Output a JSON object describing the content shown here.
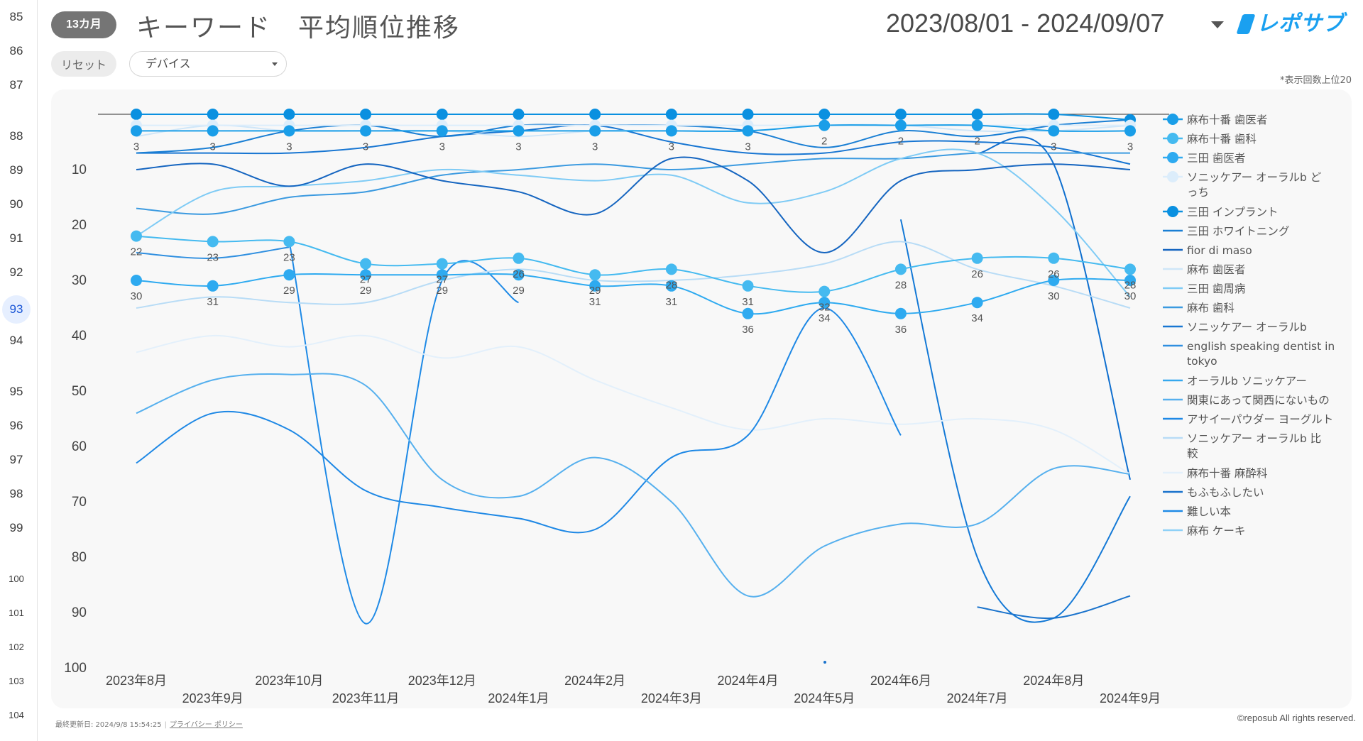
{
  "gutter": {
    "lines": [
      "85",
      "86",
      "87",
      "88",
      "89",
      "90",
      "91",
      "92",
      "93",
      "94",
      "95",
      "96",
      "97",
      "98",
      "99",
      "100",
      "101",
      "102",
      "103",
      "104"
    ],
    "active": "93"
  },
  "header": {
    "period_badge": "13カ月",
    "title": "キーワード　平均順位推移",
    "date_range": "2023/08/01 - 2024/09/07",
    "logo_text": "レポサブ"
  },
  "controls": {
    "reset_label": "リセット",
    "device_label": "デバイス"
  },
  "chart_note": "*表示回数上位20",
  "footer": {
    "updated": "最終更新日: 2024/9/8 15:54:25",
    "privacy": "プライバシー ポリシー",
    "copyright": "©reposub All rights reserved."
  },
  "chart_data": {
    "type": "line",
    "y_reversed": true,
    "ylim": [
      0,
      100
    ],
    "yticks": [
      10,
      20,
      30,
      40,
      50,
      60,
      70,
      80,
      90,
      100
    ],
    "grid": false,
    "legend_position": "right",
    "x": [
      "2023年8月",
      "2023年9月",
      "2023年10月",
      "2023年11月",
      "2023年12月",
      "2024年1月",
      "2024年2月",
      "2024年3月",
      "2024年4月",
      "2024年5月",
      "2024年6月",
      "2024年7月",
      "2024年8月",
      "2024年9月"
    ],
    "series": [
      {
        "name": "麻布十番 歯医者",
        "color": "#1a9ee8",
        "marker": true,
        "labels": true,
        "values": [
          3,
          3,
          3,
          3,
          3,
          3,
          3,
          3,
          3,
          2,
          2,
          2,
          3,
          3
        ]
      },
      {
        "name": "麻布十番 歯科",
        "color": "#45baf0",
        "marker": true,
        "labels": true,
        "values": [
          22,
          23,
          23,
          27,
          27,
          26,
          29,
          28,
          31,
          32,
          28,
          26,
          26,
          28
        ]
      },
      {
        "name": "三田 歯医者",
        "color": "#2eaaf0",
        "marker": true,
        "labels": true,
        "values": [
          30,
          31,
          29,
          29,
          29,
          29,
          31,
          31,
          36,
          34,
          36,
          34,
          30,
          30
        ]
      },
      {
        "name": "ソニッケアー オーラルb どっち",
        "color": "#dcedfb",
        "marker": true,
        "labels": false,
        "values": [
          2,
          2,
          2,
          2,
          2,
          2,
          2,
          2,
          2,
          2,
          2,
          2,
          2,
          2
        ]
      },
      {
        "name": "三田 インプラント",
        "color": "#0a90e0",
        "marker": true,
        "labels": false,
        "values": [
          0,
          0,
          0,
          0,
          0,
          0,
          0,
          0,
          0,
          0,
          0,
          0,
          0,
          1
        ]
      },
      {
        "name": "三田 ホワイトニング",
        "color": "#1a7fd4",
        "marker": false,
        "labels": false,
        "values": [
          7,
          6,
          3,
          2,
          4,
          2,
          2,
          2,
          3,
          6,
          3,
          4,
          2,
          1
        ]
      },
      {
        "name": "fior di maso",
        "color": "#1565c0",
        "marker": false,
        "labels": false,
        "values": [
          10,
          9,
          13,
          9,
          12,
          14,
          18,
          8,
          12,
          25,
          12,
          10,
          9,
          10
        ]
      },
      {
        "name": "麻布 歯医者",
        "color": "#cfe6f8",
        "marker": false,
        "labels": false,
        "values": [
          4,
          2,
          3,
          3,
          3,
          4,
          3,
          3,
          3,
          2,
          2,
          3,
          3,
          2
        ]
      },
      {
        "name": "三田 歯周病",
        "color": "#7fcbf5",
        "marker": false,
        "labels": false,
        "values": [
          22,
          14,
          13,
          12,
          10,
          11,
          12,
          11,
          16,
          14,
          8,
          7,
          17,
          33
        ]
      },
      {
        "name": "麻布 歯科",
        "color": "#3b9ae0",
        "marker": false,
        "labels": false,
        "values": [
          17,
          18,
          15,
          14,
          11,
          10,
          9,
          10,
          9,
          8,
          8,
          7,
          7,
          7
        ]
      },
      {
        "name": "ソニッケアー オーラルb",
        "color": "#1876d2",
        "marker": false,
        "labels": false,
        "values": [
          7,
          7,
          7,
          6,
          4,
          3,
          2,
          5,
          7,
          7,
          5,
          5,
          6,
          9
        ]
      },
      {
        "name": "english speaking dentist in tokyo",
        "color": "#2f8fe0",
        "marker": false,
        "labels": false,
        "values": [
          25,
          26,
          24,
          null,
          null,
          null,
          null,
          null,
          null,
          null,
          null,
          null,
          null,
          null
        ]
      },
      {
        "name": "オーラルb ソニッケアー",
        "color": "#35a8ee",
        "marker": false,
        "labels": false,
        "values": [
          null,
          null,
          null,
          null,
          null,
          null,
          null,
          null,
          null,
          null,
          null,
          null,
          null,
          null
        ]
      },
      {
        "name": "関東にあって関西にないもの",
        "color": "#56b0ee",
        "marker": false,
        "labels": false,
        "values": [
          54,
          48,
          47,
          49,
          66,
          69,
          62,
          70,
          87,
          78,
          74,
          74,
          64,
          65
        ]
      },
      {
        "name": "アサイーパウダー ヨーグルト",
        "color": "#1e88e5",
        "marker": false,
        "labels": false,
        "values": [
          63,
          54,
          57,
          68,
          71,
          73,
          75,
          62,
          58,
          35,
          58,
          null,
          null,
          null
        ]
      },
      {
        "name": "ソニッケアー オーラルb 比較",
        "color": "#b8dcf6",
        "marker": false,
        "labels": false,
        "values": [
          35,
          33,
          34,
          34,
          30,
          28,
          30,
          30,
          29,
          27,
          23,
          28,
          31,
          35
        ]
      },
      {
        "name": "麻布十番 麻酔科",
        "color": "#e3f0fb",
        "marker": false,
        "labels": false,
        "values": [
          43,
          40,
          42,
          40,
          44,
          42,
          48,
          53,
          57,
          55,
          56,
          55,
          57,
          65
        ]
      },
      {
        "name": "もふもふしたい",
        "color": "#1a73cc",
        "marker": false,
        "labels": false,
        "values": [
          null,
          null,
          null,
          null,
          null,
          null,
          null,
          null,
          null,
          null,
          null,
          89,
          91,
          87
        ]
      },
      {
        "name": "難しい本",
        "color": "#1f8ae6",
        "marker": false,
        "labels": false,
        "values": [
          null,
          null,
          23,
          92,
          30,
          34,
          null,
          null,
          null,
          null,
          null,
          null,
          null,
          null
        ]
      },
      {
        "name": "麻布 ケーキ",
        "color": "#8ed1f7",
        "marker": false,
        "labels": false,
        "values": [
          null,
          null,
          null,
          null,
          null,
          null,
          null,
          null,
          null,
          null,
          null,
          null,
          null,
          null
        ]
      }
    ],
    "extra_lines": [
      {
        "color": "#1479d6",
        "values": [
          null,
          null,
          null,
          null,
          null,
          null,
          null,
          null,
          null,
          null,
          19,
          80,
          91,
          69
        ]
      },
      {
        "color": "#0f6fcf",
        "values": [
          null,
          null,
          null,
          null,
          null,
          null,
          null,
          null,
          null,
          null,
          null,
          7,
          9,
          66
        ]
      }
    ]
  }
}
